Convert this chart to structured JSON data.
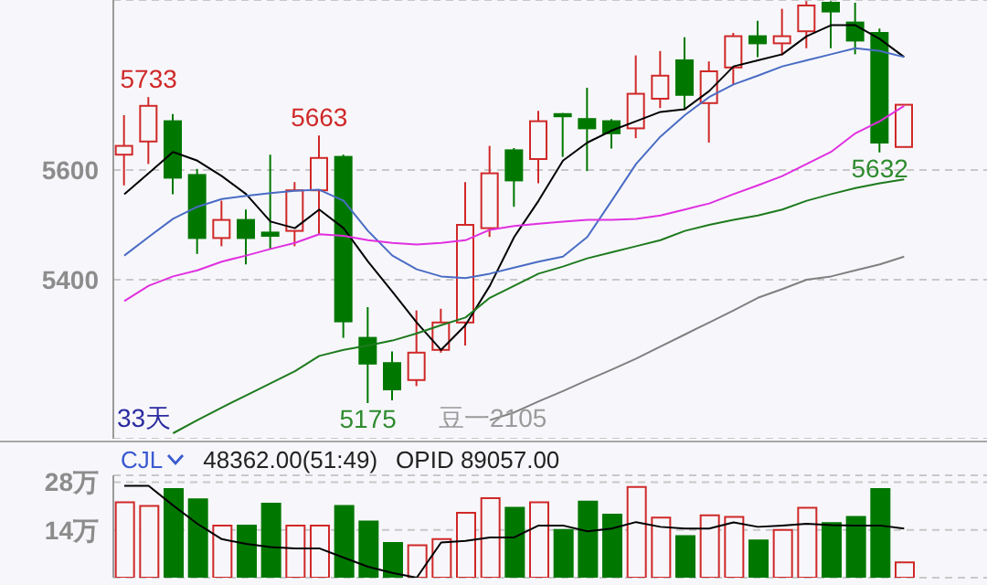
{
  "chart_data": [
    {
      "type": "candlestick",
      "categories": [
        null,
        null,
        null,
        null,
        null,
        null,
        null,
        null,
        null,
        null,
        null,
        null,
        null,
        null,
        null,
        null,
        null,
        null,
        null,
        null,
        null,
        null,
        null,
        null,
        null,
        null,
        null,
        null,
        null,
        null,
        null,
        null,
        null
      ],
      "ohlc": [
        [
          5628,
          5700,
          5572,
          5644
        ],
        [
          5652,
          5733,
          5611,
          5717
        ],
        [
          5689,
          5702,
          5556,
          5586
        ],
        [
          5591,
          5602,
          5447,
          5476
        ],
        [
          5476,
          5544,
          5461,
          5509
        ],
        [
          5509,
          5528,
          5428,
          5476
        ],
        [
          5486,
          5628,
          5456,
          5480
        ],
        [
          5489,
          5578,
          5461,
          5563
        ],
        [
          5563,
          5663,
          5483,
          5622
        ],
        [
          5624,
          5628,
          5294,
          5324
        ],
        [
          5294,
          5350,
          5175,
          5247
        ],
        [
          5248,
          5269,
          5180,
          5200
        ],
        [
          5217,
          5344,
          5206,
          5267
        ],
        [
          5272,
          5347,
          5267,
          5322
        ],
        [
          5322,
          5578,
          5280,
          5500
        ],
        [
          5494,
          5644,
          5478,
          5594
        ],
        [
          5636,
          5640,
          5533,
          5581
        ],
        [
          5620,
          5708,
          5576,
          5689
        ],
        [
          5702,
          5704,
          5624,
          5698
        ],
        [
          5693,
          5750,
          5598,
          5676
        ],
        [
          5689,
          5693,
          5639,
          5667
        ],
        [
          5676,
          5809,
          5658,
          5739
        ],
        [
          5730,
          5817,
          5713,
          5772
        ],
        [
          5800,
          5842,
          5711,
          5737
        ],
        [
          5722,
          5798,
          5650,
          5780
        ],
        [
          5787,
          5850,
          5756,
          5844
        ],
        [
          5844,
          5872,
          5806,
          5831
        ],
        [
          5831,
          5894,
          5809,
          5844
        ],
        [
          5853,
          5908,
          5822,
          5900
        ],
        [
          5905,
          5908,
          5822,
          5889
        ],
        [
          5869,
          5905,
          5811,
          5836
        ],
        [
          5850,
          5858,
          5632,
          5650
        ],
        [
          5642,
          5719,
          5642,
          5719
        ]
      ],
      "colors": [
        "#d02828",
        "#d02828",
        "#007800",
        "#007800",
        "#d02828",
        "#007800",
        "#007800",
        "#d02828",
        "#d02828",
        "#007800",
        "#007800",
        "#007800",
        "#d02828",
        "#d02828",
        "#d02828",
        "#d02828",
        "#007800",
        "#d02828",
        "#007800",
        "#007800",
        "#007800",
        "#d02828",
        "#d02828",
        "#007800",
        "#d02828",
        "#d02828",
        "#007800",
        "#d02828",
        "#d02828",
        "#007800",
        "#007800",
        "#007800",
        "#d02828"
      ],
      "series": [
        {
          "type": "line",
          "color": "#000000",
          "values": [
            5556,
            5594,
            5633,
            5617,
            5589,
            5556,
            5506,
            5494,
            5528,
            5494,
            5433,
            5378,
            5322,
            5272,
            5317,
            5389,
            5478,
            5544,
            5617,
            5650,
            5672,
            5689,
            5706,
            5711,
            5744,
            5789,
            5800,
            5811,
            5844,
            5864,
            5864,
            5839,
            5806
          ]
        },
        {
          "type": "line",
          "color": "#4a6cc4",
          "values": [
            5444,
            5478,
            5511,
            5533,
            5547,
            5553,
            5558,
            5562,
            5564,
            5544,
            5489,
            5444,
            5419,
            5406,
            5403,
            5411,
            5422,
            5433,
            5442,
            5478,
            5544,
            5611,
            5661,
            5700,
            5733,
            5756,
            5772,
            5789,
            5800,
            5811,
            5822,
            5817,
            5806
          ]
        },
        {
          "type": "line",
          "color": "#e030e0",
          "values": [
            5361,
            5389,
            5406,
            5417,
            5433,
            5444,
            5456,
            5467,
            5483,
            5480,
            5472,
            5467,
            5464,
            5467,
            5472,
            5491,
            5498,
            5502,
            5506,
            5509,
            5509,
            5511,
            5517,
            5528,
            5539,
            5556,
            5572,
            5589,
            5611,
            5633,
            5667,
            5689,
            5717
          ]
        },
        {
          "type": "line",
          "color": "#1e7a1e",
          "values": [
            null,
            null,
            5120,
            5144,
            5167,
            5189,
            5211,
            5233,
            5261,
            5272,
            5280,
            5289,
            5302,
            5317,
            5331,
            5367,
            5389,
            5411,
            5424,
            5439,
            5450,
            5461,
            5472,
            5489,
            5500,
            5509,
            5517,
            5528,
            5544,
            5556,
            5567,
            5576,
            5583
          ]
        },
        {
          "type": "line",
          "color": "#808080",
          "values": [
            null,
            null,
            null,
            null,
            null,
            null,
            null,
            null,
            null,
            null,
            null,
            null,
            null,
            null,
            null,
            5144,
            5158,
            5178,
            5197,
            5217,
            5236,
            5256,
            5278,
            5300,
            5322,
            5344,
            5367,
            5383,
            5400,
            5406,
            5417,
            5428,
            5442
          ]
        }
      ],
      "ylim": [
        5110,
        5910
      ],
      "yticks": [
        5400,
        5600
      ],
      "grid": "y",
      "tick_labels": "y",
      "annotations": [
        {
          "text": "5733",
          "y": 5733
        },
        {
          "text": "5663",
          "y": 5663
        },
        {
          "text": "5175",
          "y": 5175
        },
        {
          "text": "5632",
          "y": 5632
        },
        "33天",
        "豆一2105"
      ]
    },
    {
      "type": "bar",
      "title": "CJL",
      "categories": [
        null,
        null,
        null,
        null,
        null,
        null,
        null,
        null,
        null,
        null,
        null,
        null,
        null,
        null,
        null,
        null,
        null,
        null,
        null,
        null,
        null,
        null,
        null,
        null,
        null,
        null,
        null,
        null,
        null,
        null,
        null,
        null,
        null
      ],
      "series": [
        {
          "type": "bar",
          "values": [
            22.1,
            21.0,
            26.0,
            23.0,
            15.3,
            15.3,
            21.7,
            15.3,
            15.3,
            21.0,
            16.5,
            10.2,
            9.5,
            11.3,
            19.0,
            23.3,
            20.5,
            22.1,
            14.0,
            22.3,
            18.5,
            26.6,
            17.6,
            12.2,
            18.3,
            17.8,
            10.9,
            14.0,
            20.5,
            16.0,
            17.8,
            26.0,
            4.5
          ],
          "colors": [
            "#d02828",
            "#d02828",
            "#007800",
            "#007800",
            "#d02828",
            "#007800",
            "#007800",
            "#d02828",
            "#d02828",
            "#007800",
            "#007800",
            "#007800",
            "#d02828",
            "#d02828",
            "#d02828",
            "#d02828",
            "#007800",
            "#d02828",
            "#007800",
            "#007800",
            "#007800",
            "#d02828",
            "#d02828",
            "#007800",
            "#d02828",
            "#d02828",
            "#007800",
            "#d02828",
            "#d02828",
            "#007800",
            "#007800",
            "#007800",
            "#d02828"
          ]
        },
        {
          "type": "line",
          "color": "#000000",
          "values": [
            26.9,
            26.9,
            21.2,
            15.8,
            11.3,
            9.9,
            9.0,
            8.6,
            8.6,
            5.9,
            3.2,
            1.4,
            0,
            10.3,
            10.8,
            11.8,
            11.8,
            15.3,
            15.3,
            13.6,
            14.4,
            16.3,
            14.9,
            14.4,
            14.4,
            16.2,
            14.9,
            15.3,
            15.8,
            15.4,
            15.3,
            15.3,
            14.4
          ]
        }
      ],
      "ylim": [
        0,
        30
      ],
      "yticks": [
        {
          "value": 14,
          "label": "14万"
        },
        {
          "value": 28,
          "label": "28万"
        }
      ],
      "grid": "y",
      "tick_labels": "y",
      "annotations": [
        "48362.00(51:49)",
        "OPID 89057.00"
      ]
    }
  ]
}
